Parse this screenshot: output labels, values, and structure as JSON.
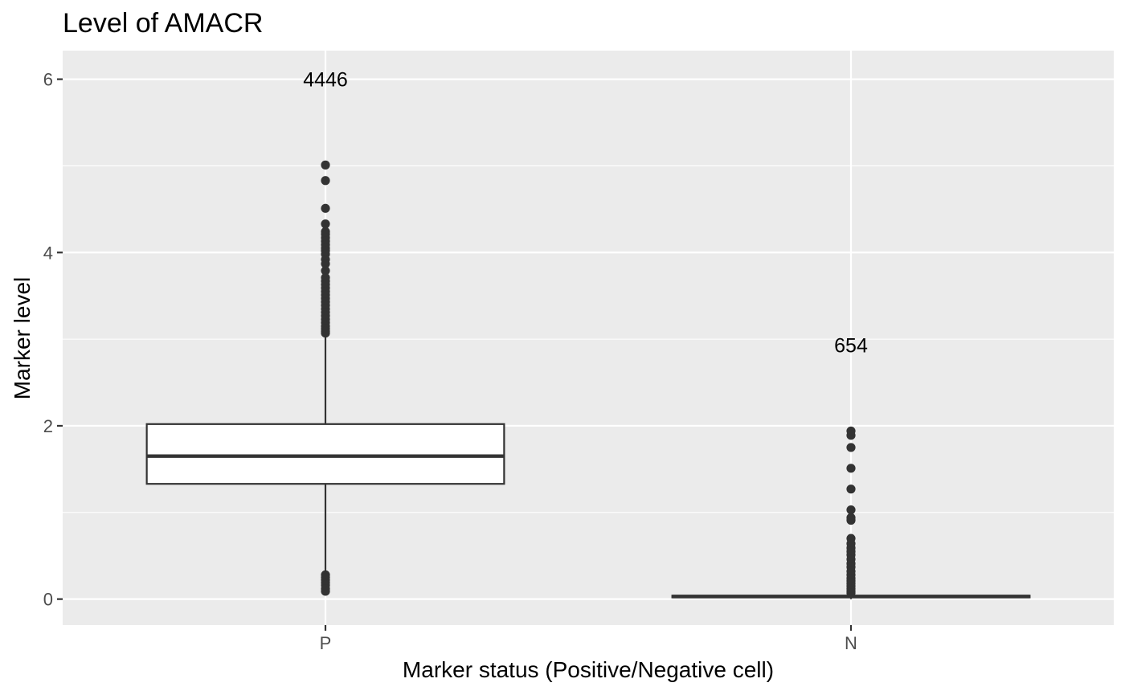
{
  "chart_data": {
    "type": "box",
    "title": "Level of AMACR",
    "xlabel": "Marker status (Positive/Negative cell)",
    "ylabel": "Marker level",
    "categories": [
      "P",
      "N"
    ],
    "ylim": [
      -0.3,
      6.33
    ],
    "yticks": [
      0,
      2,
      4,
      6
    ],
    "grid": true,
    "legend": "none",
    "colors": {
      "panel": "#ebebeb",
      "grid": "#ffffff",
      "box_fill": "#ffffff",
      "box_line": "#333333",
      "point": "#333333"
    },
    "boxes": [
      {
        "category": "P",
        "count_label": "4446",
        "count_label_y": 6.0,
        "q1": 1.33,
        "median": 1.65,
        "q3": 2.02,
        "whisker_low": 0.3,
        "whisker_high": 3.05,
        "outliers": [
          5.01,
          4.83,
          4.51,
          4.33,
          4.24,
          4.21,
          4.17,
          4.13,
          4.09,
          4.05,
          4.02,
          3.98,
          3.92,
          3.87,
          3.79,
          3.71,
          3.67,
          3.63,
          3.59,
          3.55,
          3.51,
          3.47,
          3.43,
          3.39,
          3.35,
          3.31,
          3.27,
          3.23,
          3.19,
          3.15,
          3.12,
          3.09,
          3.07,
          0.28,
          0.25,
          0.22,
          0.19,
          0.16,
          0.12,
          0.09
        ]
      },
      {
        "category": "N",
        "count_label": "654",
        "count_label_y": 2.93,
        "q1": 0.02,
        "median": 0.03,
        "q3": 0.04,
        "whisker_low": 0.0,
        "whisker_high": 0.06,
        "outliers": [
          1.94,
          1.89,
          1.75,
          1.51,
          1.27,
          1.03,
          0.94,
          0.91,
          0.7,
          0.64,
          0.59,
          0.55,
          0.51,
          0.46,
          0.41,
          0.37,
          0.32,
          0.28,
          0.24,
          0.21,
          0.18,
          0.15,
          0.12,
          0.09,
          0.07
        ]
      }
    ]
  }
}
